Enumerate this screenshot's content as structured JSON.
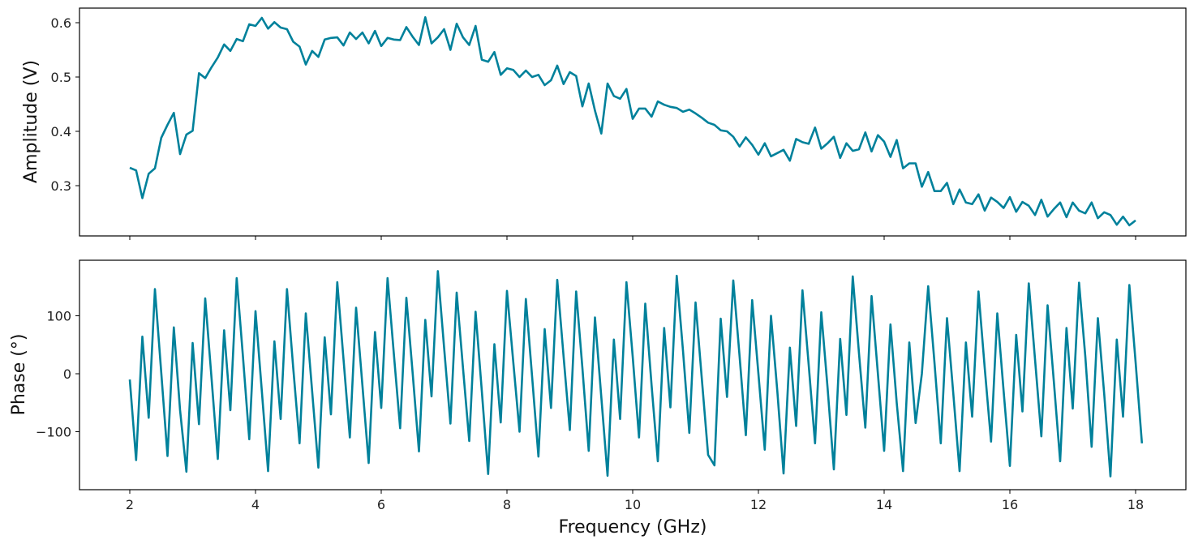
{
  "chart_data": [
    {
      "type": "line",
      "panel": "top",
      "title": "",
      "xlabel": "",
      "ylabel": "Amplitude (V)",
      "xlim": [
        1.2,
        18.8
      ],
      "ylim": [
        0.21,
        0.63
      ],
      "grid": false,
      "line_color": "#00819b",
      "x_start": 2.0,
      "x_step": 0.1,
      "xticks": [
        2,
        4,
        6,
        8,
        10,
        12,
        14,
        16,
        18
      ],
      "yticks": [
        0.3,
        0.4,
        0.5,
        0.6
      ],
      "ytick_labels": [
        "0.3",
        "0.4",
        "0.5",
        "0.6"
      ],
      "values": [
        0.333,
        0.328,
        0.277,
        0.322,
        0.332,
        0.388,
        0.412,
        0.434,
        0.358,
        0.394,
        0.401,
        0.507,
        0.498,
        0.518,
        0.536,
        0.56,
        0.548,
        0.57,
        0.566,
        0.597,
        0.594,
        0.609,
        0.589,
        0.601,
        0.591,
        0.588,
        0.565,
        0.556,
        0.523,
        0.548,
        0.537,
        0.569,
        0.572,
        0.573,
        0.558,
        0.582,
        0.57,
        0.582,
        0.562,
        0.585,
        0.557,
        0.572,
        0.569,
        0.568,
        0.592,
        0.574,
        0.559,
        0.61,
        0.562,
        0.573,
        0.588,
        0.55,
        0.598,
        0.573,
        0.559,
        0.594,
        0.532,
        0.528,
        0.546,
        0.504,
        0.516,
        0.513,
        0.5,
        0.512,
        0.5,
        0.504,
        0.485,
        0.494,
        0.521,
        0.487,
        0.509,
        0.502,
        0.446,
        0.488,
        0.438,
        0.396,
        0.488,
        0.465,
        0.46,
        0.478,
        0.423,
        0.442,
        0.442,
        0.427,
        0.455,
        0.449,
        0.445,
        0.443,
        0.436,
        0.44,
        0.433,
        0.425,
        0.416,
        0.412,
        0.402,
        0.4,
        0.39,
        0.372,
        0.389,
        0.375,
        0.357,
        0.378,
        0.354,
        0.36,
        0.366,
        0.346,
        0.386,
        0.38,
        0.377,
        0.407,
        0.368,
        0.378,
        0.39,
        0.351,
        0.378,
        0.364,
        0.367,
        0.398,
        0.363,
        0.393,
        0.381,
        0.353,
        0.384,
        0.332,
        0.341,
        0.341,
        0.298,
        0.325,
        0.29,
        0.29,
        0.305,
        0.266,
        0.293,
        0.269,
        0.266,
        0.284,
        0.254,
        0.278,
        0.27,
        0.259,
        0.279,
        0.252,
        0.27,
        0.263,
        0.246,
        0.274,
        0.243,
        0.257,
        0.269,
        0.242,
        0.269,
        0.254,
        0.249,
        0.269,
        0.24,
        0.251,
        0.246,
        0.228,
        0.243,
        0.227,
        0.236
      ]
    },
    {
      "type": "line",
      "panel": "bottom",
      "title": "",
      "xlabel": "Frequency (GHz)",
      "ylabel": "Phase (°)",
      "xlim": [
        1.2,
        18.8
      ],
      "ylim": [
        -195,
        195
      ],
      "grid": false,
      "line_color": "#00819b",
      "x_start": 2.0,
      "x_step": 0.1,
      "xticks": [
        2,
        4,
        6,
        8,
        10,
        12,
        14,
        16,
        18
      ],
      "xtick_labels": [
        "2",
        "4",
        "6",
        "8",
        "10",
        "12",
        "14",
        "16",
        "18"
      ],
      "yticks": [
        -100,
        0,
        100
      ],
      "ytick_labels": [
        "−100",
        "0",
        "100"
      ],
      "values": [
        -10,
        -149,
        64,
        -76,
        146,
        2,
        -142,
        80,
        -63,
        -169,
        53,
        -87,
        130,
        -8,
        -147,
        75,
        -63,
        165,
        30,
        -113,
        108,
        -30,
        -168,
        56,
        -78,
        146,
        10,
        -120,
        104,
        -30,
        -162,
        63,
        -70,
        158,
        25,
        -110,
        114,
        -20,
        -154,
        72,
        -59,
        165,
        35,
        -94,
        131,
        0,
        -134,
        93,
        -39,
        177,
        45,
        -86,
        140,
        10,
        -116,
        107,
        -30,
        -173,
        51,
        -84,
        143,
        20,
        -100,
        129,
        -5,
        -143,
        77,
        -59,
        162,
        30,
        -97,
        142,
        10,
        -133,
        97,
        -40,
        -176,
        59,
        -78,
        158,
        30,
        -110,
        121,
        -20,
        -151,
        79,
        -58,
        169,
        40,
        -102,
        123,
        -10,
        -140,
        -158,
        95,
        -40,
        161,
        30,
        -106,
        127,
        0,
        -131,
        100,
        -30,
        -172,
        45,
        -90,
        144,
        15,
        -120,
        106,
        -25,
        -165,
        60,
        -71,
        168,
        35,
        -93,
        134,
        0,
        -133,
        85,
        -50,
        -168,
        54,
        -85,
        0,
        151,
        20,
        -120,
        96,
        -35,
        -168,
        54,
        -74,
        142,
        10,
        -117,
        104,
        -30,
        -159,
        67,
        -65,
        156,
        25,
        -108,
        118,
        -15,
        -151,
        79,
        -60,
        157,
        30,
        -126,
        96,
        -35,
        -177,
        59,
        -74,
        153,
        20,
        -120
      ]
    }
  ],
  "figure": {
    "top_panel": {
      "ylabel": "Amplitude (V)"
    },
    "bottom_panel": {
      "ylabel": "Phase (°)",
      "xlabel": "Frequency (GHz)"
    }
  }
}
